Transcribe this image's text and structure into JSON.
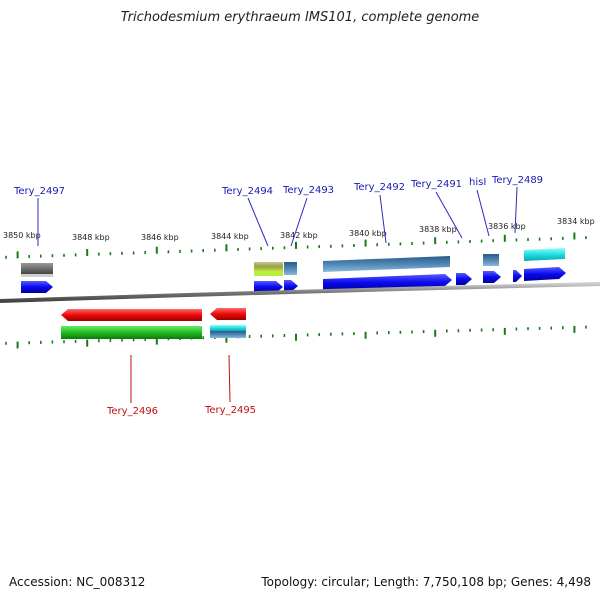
{
  "title": "Trichodesmium erythraeum IMS101, complete genome",
  "footer": {
    "accession": "Accession: NC_008312",
    "summary": "Topology: circular; Length: 7,750,108 bp; Genes: 4,498"
  },
  "scale_labels": [
    "3850 kbp",
    "3848 kbp",
    "3846 kbp",
    "3844 kbp",
    "3842 kbp",
    "3840 kbp",
    "3838 kbp",
    "3836 kbp",
    "3834 kbp"
  ],
  "genes_forward": [
    "Tery_2497",
    "Tery_2494",
    "Tery_2493",
    "Tery_2492",
    "Tery_2491",
    "hisI",
    "Tery_2489"
  ],
  "genes_reverse": [
    "Tery_2496",
    "Tery_2495"
  ],
  "colors": {
    "forward_gene": "#0a0aee",
    "reverse_gene": "#ee0a0a",
    "forward_label": "#1a1ab0",
    "reverse_label": "#c01010",
    "backbone": "#777777",
    "tick": "#1a7a1a",
    "grey_feature": "#666666",
    "olive_feature": "#9aa04a",
    "steel_feature": "#4f86b4",
    "cyan_feature": "#22dde0",
    "green_feature": "#22bb22"
  }
}
